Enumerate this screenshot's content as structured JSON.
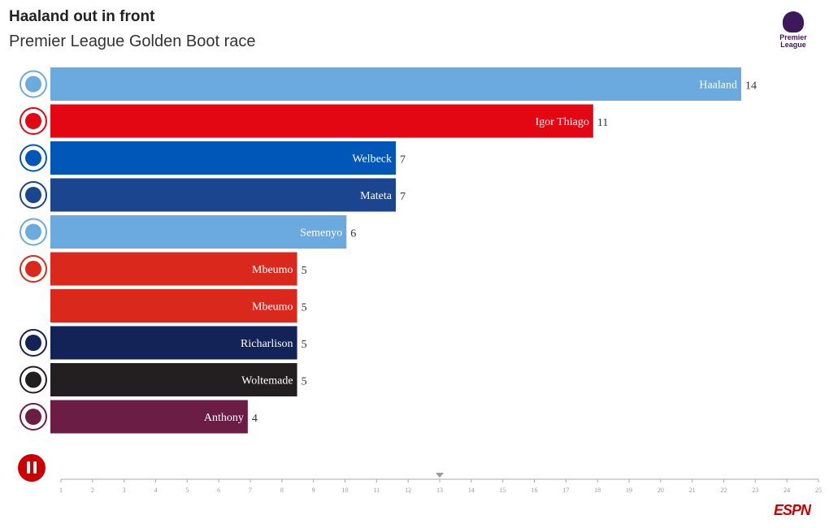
{
  "header": {
    "title": "Haaland out in front",
    "subtitle": "Premier League Golden Boot race",
    "logo_text": "Premier League"
  },
  "chart_data": {
    "type": "bar",
    "orientation": "horizontal",
    "categories": [
      "Haaland",
      "Igor Thiago",
      "Welbeck",
      "Mateta",
      "Semenyo",
      "Mbeumo",
      "Mbeumo",
      "Richarlison",
      "Woltemade",
      "Anthony"
    ],
    "values": [
      14,
      11,
      7,
      7,
      6,
      5,
      5,
      5,
      5,
      4
    ],
    "colors": [
      "#6aaadf",
      "#e30613",
      "#0057b8",
      "#1b458f",
      "#6aaadf",
      "#da291c",
      "#da291c",
      "#132257",
      "#231f20",
      "#6c1d45"
    ],
    "crest_colors": [
      "#6cabdd",
      "#e30613",
      "#0057b8",
      "#1b458f",
      "#6cabdd",
      "#da291c",
      null,
      "#132257",
      "#231f20",
      "#6c1d45"
    ],
    "xlim": [
      0,
      14
    ],
    "timeline": {
      "ticks": [
        1,
        2,
        3,
        4,
        5,
        6,
        7,
        8,
        9,
        10,
        11,
        12,
        13,
        14,
        15,
        16,
        17,
        18,
        19,
        20,
        21,
        22,
        23,
        24,
        25
      ],
      "current": 13
    }
  },
  "controls": {
    "pause_icon": "pause-icon"
  },
  "footer": {
    "brand": "ESPN"
  }
}
